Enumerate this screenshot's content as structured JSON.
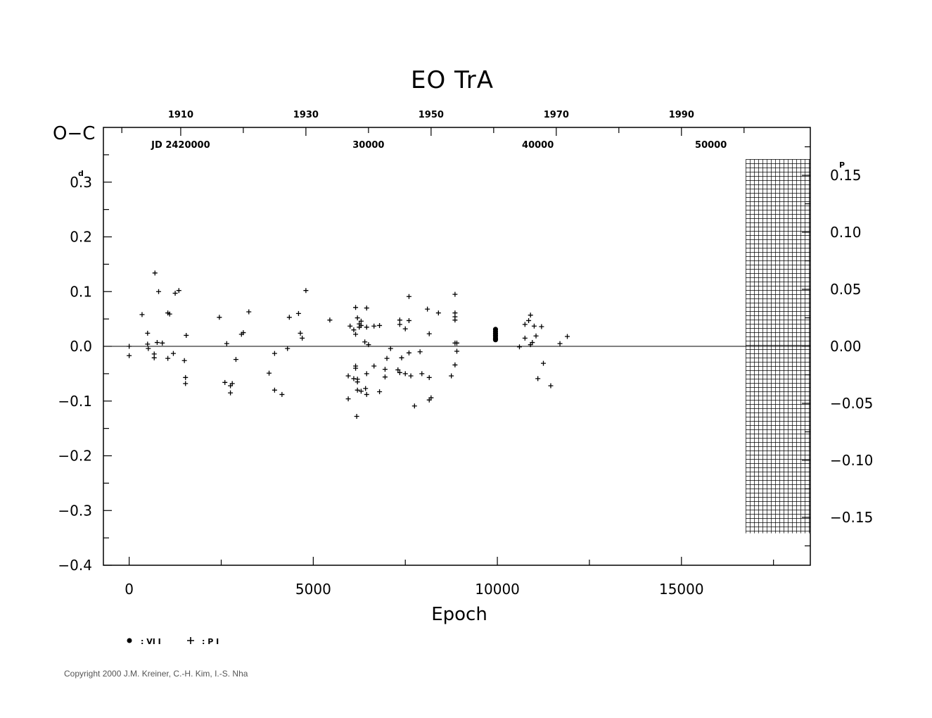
{
  "chart_data": {
    "type": "scatter",
    "title": "EO  TrA",
    "xlabel": "Epoch",
    "ylabel": "O−C",
    "ylabel_unit": "d",
    "y2_unit": "P",
    "xlim": [
      -700,
      18500
    ],
    "ylim": [
      -0.4,
      0.4
    ],
    "y2lim": [
      -0.192,
      0.192
    ],
    "x_ticks": [
      {
        "v": 0,
        "label": "0"
      },
      {
        "v": 5000,
        "label": "5000"
      },
      {
        "v": 10000,
        "label": "10000"
      },
      {
        "v": 15000,
        "label": "15000"
      }
    ],
    "y_ticks": [
      {
        "v": 0.3,
        "label": "0.3"
      },
      {
        "v": 0.2,
        "label": "0.2"
      },
      {
        "v": 0.1,
        "label": "0.1"
      },
      {
        "v": 0.0,
        "label": "0.0"
      },
      {
        "v": -0.1,
        "label": "−0.1"
      },
      {
        "v": -0.2,
        "label": "−0.2"
      },
      {
        "v": -0.3,
        "label": "−0.3"
      },
      {
        "v": -0.4,
        "label": "−0.4"
      }
    ],
    "y2_ticks": [
      {
        "v": 0.15,
        "label": "0.15"
      },
      {
        "v": 0.1,
        "label": "0.10"
      },
      {
        "v": 0.05,
        "label": "0.05"
      },
      {
        "v": 0.0,
        "label": "0.00"
      },
      {
        "v": -0.05,
        "label": "−0.05"
      },
      {
        "v": -0.1,
        "label": "−0.10"
      },
      {
        "v": -0.15,
        "label": "−0.15"
      }
    ],
    "year_ticks": [
      {
        "x": 1400,
        "label": "1910"
      },
      {
        "x": 4800,
        "label": "1930"
      },
      {
        "x": 8200,
        "label": "1950"
      },
      {
        "x": 11600,
        "label": "1970"
      },
      {
        "x": 15000,
        "label": "1990"
      }
    ],
    "year_minor_x": [
      -200,
      3100,
      6500,
      9900,
      13300,
      16700
    ],
    "jd_ticks": [
      {
        "x": 1400,
        "label": "JD  2420000"
      },
      {
        "x": 6500,
        "label": "30000"
      },
      {
        "x": 11100,
        "label": "40000"
      },
      {
        "x": 15800,
        "label": "50000"
      }
    ],
    "legend": [
      {
        "symbol": "dot",
        "label": ": VI I"
      },
      {
        "symbol": "plus",
        "label": ": P I"
      }
    ],
    "shaded_region_x": [
      16750,
      18500
    ],
    "series": [
      {
        "name": "VI I",
        "symbol": "dot",
        "points": [
          [
            9950,
            0.031
          ],
          [
            9950,
            0.027
          ],
          [
            9950,
            0.023
          ],
          [
            9950,
            0.019
          ],
          [
            9950,
            0.015
          ],
          [
            9950,
            0.012
          ]
        ]
      },
      {
        "name": "P I",
        "symbol": "plus",
        "points": [
          [
            0,
            0.0
          ],
          [
            0,
            -0.017
          ],
          [
            350,
            0.058
          ],
          [
            500,
            0.024
          ],
          [
            500,
            0.004
          ],
          [
            520,
            -0.004
          ],
          [
            680,
            -0.014
          ],
          [
            680,
            -0.021
          ],
          [
            700,
            0.134
          ],
          [
            760,
            0.007
          ],
          [
            800,
            0.1
          ],
          [
            900,
            0.006
          ],
          [
            1050,
            0.061
          ],
          [
            1050,
            -0.022
          ],
          [
            1100,
            0.059
          ],
          [
            1200,
            -0.013
          ],
          [
            1250,
            0.097
          ],
          [
            1350,
            0.102
          ],
          [
            1500,
            -0.026
          ],
          [
            1530,
            -0.057
          ],
          [
            1530,
            -0.068
          ],
          [
            1550,
            0.02
          ],
          [
            2450,
            0.053
          ],
          [
            2600,
            -0.066
          ],
          [
            2650,
            0.005
          ],
          [
            2750,
            -0.072
          ],
          [
            2750,
            -0.085
          ],
          [
            2800,
            -0.068
          ],
          [
            2900,
            -0.024
          ],
          [
            3050,
            0.022
          ],
          [
            3100,
            0.025
          ],
          [
            3250,
            0.063
          ],
          [
            3800,
            -0.049
          ],
          [
            3950,
            -0.013
          ],
          [
            3950,
            -0.08
          ],
          [
            4150,
            -0.088
          ],
          [
            4300,
            -0.004
          ],
          [
            4350,
            0.053
          ],
          [
            4600,
            0.06
          ],
          [
            4650,
            0.024
          ],
          [
            4700,
            0.015
          ],
          [
            4800,
            0.102
          ],
          [
            5450,
            0.048
          ],
          [
            5950,
            -0.054
          ],
          [
            5950,
            -0.096
          ],
          [
            6000,
            0.037
          ],
          [
            6100,
            0.03
          ],
          [
            6100,
            -0.059
          ],
          [
            6150,
            0.022
          ],
          [
            6150,
            0.071
          ],
          [
            6150,
            -0.036
          ],
          [
            6150,
            -0.04
          ],
          [
            6180,
            -0.128
          ],
          [
            6200,
            0.052
          ],
          [
            6200,
            -0.06
          ],
          [
            6200,
            -0.065
          ],
          [
            6200,
            -0.08
          ],
          [
            6250,
            0.041
          ],
          [
            6250,
            0.035
          ],
          [
            6300,
            0.046
          ],
          [
            6300,
            0.038
          ],
          [
            6300,
            -0.082
          ],
          [
            6400,
            0.008
          ],
          [
            6420,
            -0.077
          ],
          [
            6450,
            0.035
          ],
          [
            6450,
            -0.05
          ],
          [
            6450,
            0.07
          ],
          [
            6450,
            -0.088
          ],
          [
            6500,
            0.003
          ],
          [
            6650,
            0.037
          ],
          [
            6650,
            -0.036
          ],
          [
            6800,
            0.038
          ],
          [
            6800,
            -0.083
          ],
          [
            6950,
            -0.042
          ],
          [
            6950,
            -0.056
          ],
          [
            7000,
            -0.022
          ],
          [
            7100,
            -0.004
          ],
          [
            7300,
            -0.043
          ],
          [
            7350,
            0.04
          ],
          [
            7350,
            0.048
          ],
          [
            7350,
            -0.048
          ],
          [
            7400,
            -0.021
          ],
          [
            7500,
            -0.05
          ],
          [
            7500,
            0.032
          ],
          [
            7600,
            0.047
          ],
          [
            7600,
            -0.012
          ],
          [
            7600,
            0.091
          ],
          [
            7650,
            -0.054
          ],
          [
            7750,
            -0.109
          ],
          [
            7900,
            -0.01
          ],
          [
            7950,
            -0.05
          ],
          [
            8100,
            0.068
          ],
          [
            8150,
            -0.057
          ],
          [
            8150,
            0.023
          ],
          [
            8150,
            -0.098
          ],
          [
            8200,
            -0.094
          ],
          [
            8400,
            0.061
          ],
          [
            8750,
            -0.054
          ],
          [
            8850,
            0.095
          ],
          [
            8850,
            0.006
          ],
          [
            8850,
            0.061
          ],
          [
            8850,
            0.054
          ],
          [
            8850,
            0.048
          ],
          [
            8850,
            -0.034
          ],
          [
            8900,
            0.006
          ],
          [
            8900,
            -0.009
          ],
          [
            10600,
            -0.001
          ],
          [
            10750,
            0.04
          ],
          [
            10750,
            0.015
          ],
          [
            10850,
            0.047
          ],
          [
            10900,
            0.003
          ],
          [
            10900,
            0.057
          ],
          [
            10950,
            0.007
          ],
          [
            11000,
            0.037
          ],
          [
            11050,
            0.019
          ],
          [
            11100,
            -0.059
          ],
          [
            11200,
            0.036
          ],
          [
            11250,
            -0.031
          ],
          [
            11450,
            -0.072
          ],
          [
            11700,
            0.005
          ],
          [
            11900,
            0.018
          ]
        ]
      }
    ]
  },
  "copyright": "Copyright 2000 J.M. Kreiner, C.-H. Kim, I.-S. Nha"
}
